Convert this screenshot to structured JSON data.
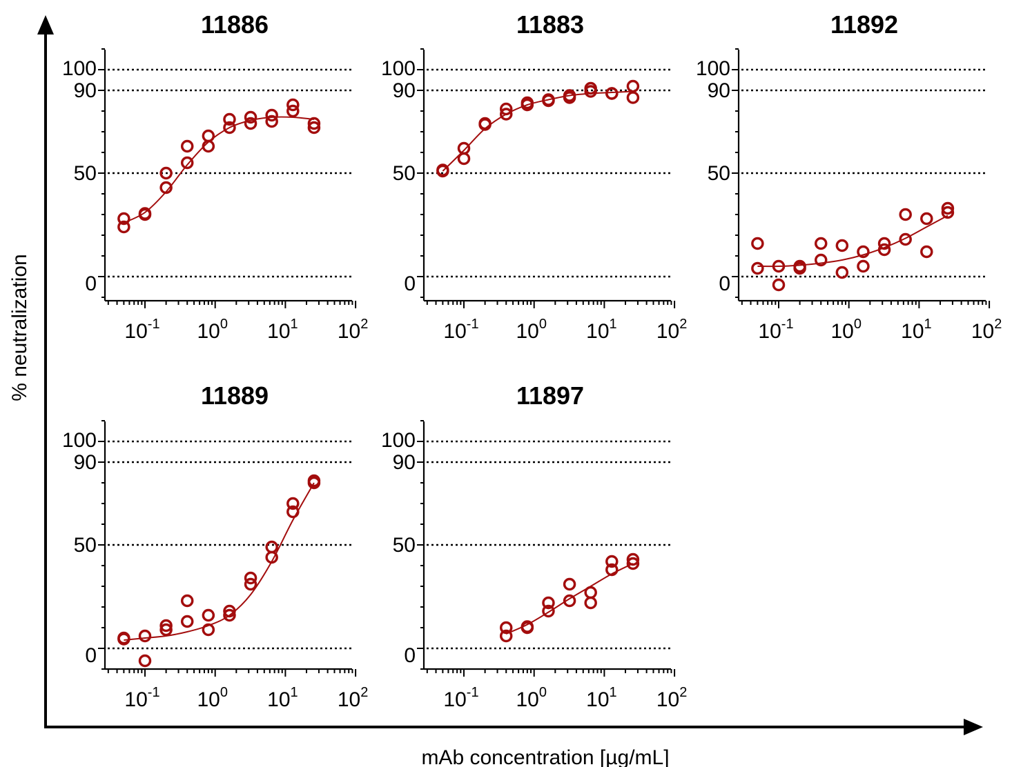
{
  "figure": {
    "ylabel": "% neutralization",
    "xlabel": "mAb concentration  [µg/mL]"
  },
  "colors": {
    "marker": "#a30d0d",
    "curve": "#a30d0d",
    "axis": "#000000",
    "reference": "#000000"
  },
  "chart_data": [
    {
      "type": "scatter",
      "title": "11886",
      "xscale": "log",
      "xlim": [
        0.03,
        100
      ],
      "ylim": [
        -10,
        110
      ],
      "xticks": [
        {
          "base": "10",
          "exp": "-1",
          "value": 0.1
        },
        {
          "base": "10",
          "exp": "0",
          "value": 1
        },
        {
          "base": "10",
          "exp": "1",
          "value": 10
        },
        {
          "base": "10",
          "exp": "2",
          "value": 100
        }
      ],
      "yticks": [
        "0",
        "50",
        "90",
        "100"
      ],
      "reference_lines": [
        0,
        50,
        90,
        100
      ],
      "points": [
        [
          0.05,
          28
        ],
        [
          0.05,
          24
        ],
        [
          0.1,
          30
        ],
        [
          0.1,
          30.5
        ],
        [
          0.2,
          50
        ],
        [
          0.2,
          43
        ],
        [
          0.4,
          63
        ],
        [
          0.4,
          55
        ],
        [
          0.8,
          68
        ],
        [
          0.8,
          63
        ],
        [
          1.6,
          76
        ],
        [
          1.6,
          72
        ],
        [
          3.2,
          77
        ],
        [
          3.2,
          74
        ],
        [
          6.4,
          78
        ],
        [
          6.4,
          75
        ],
        [
          12.8,
          83
        ],
        [
          12.8,
          80
        ],
        [
          25.6,
          74
        ],
        [
          25.6,
          72
        ]
      ],
      "curve": [
        [
          0.05,
          26
        ],
        [
          0.1,
          31
        ],
        [
          0.2,
          41
        ],
        [
          0.4,
          54
        ],
        [
          0.8,
          65
        ],
        [
          1.6,
          72
        ],
        [
          3.2,
          75.5
        ],
        [
          6.4,
          77
        ],
        [
          12.8,
          77
        ],
        [
          25.6,
          76
        ]
      ]
    },
    {
      "type": "scatter",
      "title": "11883",
      "xscale": "log",
      "xlim": [
        0.03,
        100
      ],
      "ylim": [
        -10,
        110
      ],
      "xticks": [
        {
          "base": "10",
          "exp": "-1",
          "value": 0.1
        },
        {
          "base": "10",
          "exp": "0",
          "value": 1
        },
        {
          "base": "10",
          "exp": "1",
          "value": 10
        },
        {
          "base": "10",
          "exp": "2",
          "value": 100
        }
      ],
      "yticks": [
        "0",
        "50",
        "90",
        "100"
      ],
      "reference_lines": [
        0,
        50,
        90,
        100
      ],
      "points": [
        [
          0.05,
          51
        ],
        [
          0.05,
          51.5
        ],
        [
          0.1,
          62
        ],
        [
          0.1,
          57
        ],
        [
          0.2,
          74
        ],
        [
          0.2,
          73.5
        ],
        [
          0.4,
          81
        ],
        [
          0.4,
          78.5
        ],
        [
          0.8,
          84
        ],
        [
          0.8,
          83
        ],
        [
          1.6,
          85
        ],
        [
          1.6,
          85.5
        ],
        [
          3.2,
          87.5
        ],
        [
          3.2,
          86.5
        ],
        [
          6.4,
          91
        ],
        [
          6.4,
          89.5
        ],
        [
          12.8,
          88.5
        ],
        [
          12.8,
          88.5
        ],
        [
          25.6,
          92
        ],
        [
          25.6,
          86.5
        ]
      ],
      "curve": [
        [
          0.05,
          51
        ],
        [
          0.1,
          61
        ],
        [
          0.2,
          71.5
        ],
        [
          0.4,
          78.5
        ],
        [
          0.8,
          83
        ],
        [
          1.6,
          85.5
        ],
        [
          3.2,
          87.5
        ],
        [
          6.4,
          88.5
        ],
        [
          12.8,
          89
        ],
        [
          25.6,
          89.5
        ]
      ]
    },
    {
      "type": "scatter",
      "title": "11892",
      "xscale": "log",
      "xlim": [
        0.03,
        100
      ],
      "ylim": [
        -10,
        110
      ],
      "xticks": [
        {
          "base": "10",
          "exp": "-1",
          "value": 0.1
        },
        {
          "base": "10",
          "exp": "0",
          "value": 1
        },
        {
          "base": "10",
          "exp": "1",
          "value": 10
        },
        {
          "base": "10",
          "exp": "2",
          "value": 100
        }
      ],
      "yticks": [
        "0",
        "50",
        "90",
        "100"
      ],
      "reference_lines": [
        0,
        50,
        90,
        100
      ],
      "points": [
        [
          0.05,
          16
        ],
        [
          0.05,
          4
        ],
        [
          0.1,
          5
        ],
        [
          0.1,
          -4
        ],
        [
          0.2,
          5
        ],
        [
          0.2,
          4
        ],
        [
          0.4,
          16
        ],
        [
          0.4,
          8
        ],
        [
          0.8,
          15
        ],
        [
          0.8,
          2
        ],
        [
          1.6,
          12
        ],
        [
          1.6,
          5
        ],
        [
          3.2,
          16
        ],
        [
          3.2,
          13
        ],
        [
          6.4,
          30
        ],
        [
          6.4,
          18
        ],
        [
          12.8,
          28
        ],
        [
          12.8,
          12
        ],
        [
          25.6,
          33
        ],
        [
          25.6,
          31
        ]
      ],
      "curve": [
        [
          0.05,
          5
        ],
        [
          0.1,
          5
        ],
        [
          0.2,
          5.5
        ],
        [
          0.4,
          6.5
        ],
        [
          0.8,
          8
        ],
        [
          1.6,
          10.5
        ],
        [
          3.2,
          14
        ],
        [
          6.4,
          18.5
        ],
        [
          12.8,
          24
        ],
        [
          25.6,
          29.5
        ]
      ]
    },
    {
      "type": "scatter",
      "title": "11889",
      "xscale": "log",
      "xlim": [
        0.03,
        100
      ],
      "ylim": [
        -10,
        110
      ],
      "xticks": [
        {
          "base": "10",
          "exp": "-1",
          "value": 0.1
        },
        {
          "base": "10",
          "exp": "0",
          "value": 1
        },
        {
          "base": "10",
          "exp": "1",
          "value": 10
        },
        {
          "base": "10",
          "exp": "2",
          "value": 100
        }
      ],
      "yticks": [
        "0",
        "50",
        "90",
        "100"
      ],
      "reference_lines": [
        0,
        50,
        90,
        100
      ],
      "points": [
        [
          0.05,
          5
        ],
        [
          0.05,
          4.5
        ],
        [
          0.1,
          6
        ],
        [
          0.1,
          -6
        ],
        [
          0.2,
          11
        ],
        [
          0.2,
          9
        ],
        [
          0.4,
          23
        ],
        [
          0.4,
          13
        ],
        [
          0.8,
          16
        ],
        [
          0.8,
          9
        ],
        [
          1.6,
          18
        ],
        [
          1.6,
          16
        ],
        [
          3.2,
          34
        ],
        [
          3.2,
          31
        ],
        [
          6.4,
          49
        ],
        [
          6.4,
          44
        ],
        [
          12.8,
          70
        ],
        [
          12.8,
          66
        ],
        [
          25.6,
          81
        ],
        [
          25.6,
          80
        ]
      ],
      "curve": [
        [
          0.05,
          4
        ],
        [
          0.1,
          5
        ],
        [
          0.2,
          6
        ],
        [
          0.4,
          8
        ],
        [
          0.8,
          11
        ],
        [
          1.6,
          16
        ],
        [
          3.2,
          26
        ],
        [
          6.4,
          42
        ],
        [
          12.8,
          62
        ],
        [
          25.6,
          80
        ]
      ]
    },
    {
      "type": "scatter",
      "title": "11897",
      "xscale": "log",
      "xlim": [
        0.03,
        100
      ],
      "ylim": [
        -10,
        110
      ],
      "xticks": [
        {
          "base": "10",
          "exp": "-1",
          "value": 0.1
        },
        {
          "base": "10",
          "exp": "0",
          "value": 1
        },
        {
          "base": "10",
          "exp": "1",
          "value": 10
        },
        {
          "base": "10",
          "exp": "2",
          "value": 100
        }
      ],
      "yticks": [
        "0",
        "50",
        "90",
        "100"
      ],
      "reference_lines": [
        0,
        50,
        90,
        100
      ],
      "points": [
        [
          0.4,
          10
        ],
        [
          0.4,
          6
        ],
        [
          0.8,
          10
        ],
        [
          0.8,
          10.5
        ],
        [
          1.6,
          22
        ],
        [
          1.6,
          18
        ],
        [
          3.2,
          31
        ],
        [
          3.2,
          23
        ],
        [
          6.4,
          27
        ],
        [
          6.4,
          22
        ],
        [
          12.8,
          42
        ],
        [
          12.8,
          38
        ],
        [
          25.6,
          43
        ],
        [
          25.6,
          41
        ]
      ],
      "curve": [
        [
          0.4,
          7
        ],
        [
          0.8,
          11.5
        ],
        [
          1.6,
          17.5
        ],
        [
          3.2,
          24
        ],
        [
          6.4,
          30
        ],
        [
          12.8,
          36
        ],
        [
          25.6,
          41
        ]
      ]
    }
  ]
}
